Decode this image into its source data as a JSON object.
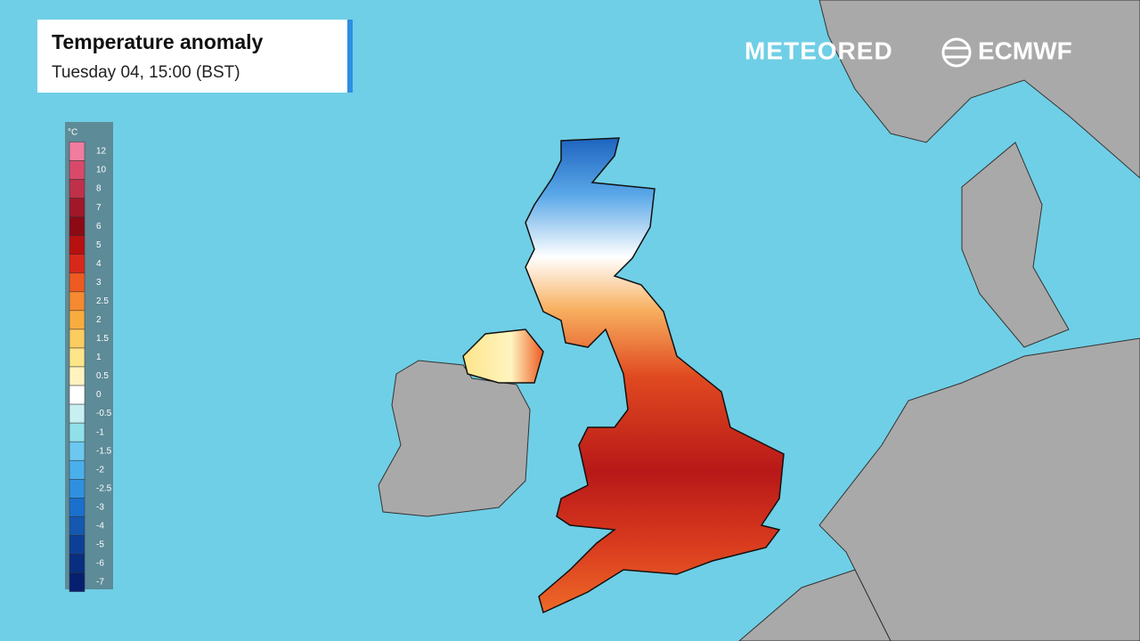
{
  "header": {
    "title": "Temperature anomaly",
    "subtitle": "Tuesday 04, 15:00 (BST)"
  },
  "branding": {
    "logo_1": "METEORED",
    "logo_2": "ECMWF"
  },
  "legend": {
    "unit": "°C",
    "stops": [
      {
        "value": 12,
        "color": "#f07ca0"
      },
      {
        "value": 10,
        "color": "#d94a6a"
      },
      {
        "value": 8,
        "color": "#c0304a"
      },
      {
        "value": 7,
        "color": "#a01828"
      },
      {
        "value": 6,
        "color": "#8b0a14"
      },
      {
        "value": 5,
        "color": "#b81010"
      },
      {
        "value": 4,
        "color": "#d8281a"
      },
      {
        "value": 3,
        "color": "#ee5a20"
      },
      {
        "value": 2.5,
        "color": "#f58a30"
      },
      {
        "value": 2,
        "color": "#f8ac40"
      },
      {
        "value": 1.5,
        "color": "#fbcc60"
      },
      {
        "value": 1,
        "color": "#fde58a"
      },
      {
        "value": 0.5,
        "color": "#fff4c0"
      },
      {
        "value": 0,
        "color": "#ffffff"
      },
      {
        "value": -0.5,
        "color": "#c8f0f0"
      },
      {
        "value": -1,
        "color": "#90e0ea"
      },
      {
        "value": -1.5,
        "color": "#6cc8ee"
      },
      {
        "value": -2,
        "color": "#4ab0ec"
      },
      {
        "value": -2.5,
        "color": "#3090e0"
      },
      {
        "value": -3,
        "color": "#1a70cc"
      },
      {
        "value": -4,
        "color": "#1458b0"
      },
      {
        "value": -5,
        "color": "#0c4096"
      },
      {
        "value": -6,
        "color": "#082e80"
      },
      {
        "value": -7,
        "color": "#062070"
      }
    ]
  }
}
